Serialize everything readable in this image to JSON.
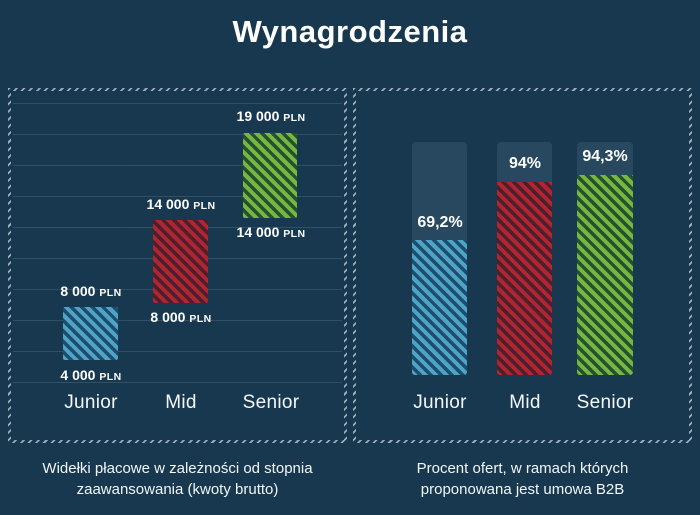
{
  "title": "Wynagrodzenia",
  "colors": {
    "background": "#17384E",
    "panel_border_hatch": "#B2C2CE",
    "track": "#27485E",
    "blue_stripe": "#4FA3C9",
    "red_stripe": "#B0252F",
    "green_stripe": "#74B742",
    "text": "#FFFFFF"
  },
  "salary_chart": {
    "caption_line1": "Widełki płacowe w zależności od stopnia",
    "caption_line2": "zaawansowania (kwoty brutto)",
    "unit": "PLN",
    "bars": [
      {
        "category": "Junior",
        "min_label": "4 000",
        "max_label": "8 000",
        "color": "blue"
      },
      {
        "category": "Mid",
        "min_label": "8 000",
        "max_label": "14 000",
        "color": "red"
      },
      {
        "category": "Senior",
        "min_label": "14 000",
        "max_label": "19 000",
        "color": "green"
      }
    ]
  },
  "b2b_chart": {
    "caption_line1": "Procent ofert, w ramach których",
    "caption_line2": "proponowana jest umowa B2B",
    "bars": [
      {
        "category": "Junior",
        "percent_label": "69,2%",
        "color": "blue"
      },
      {
        "category": "Mid",
        "percent_label": "94%",
        "color": "red"
      },
      {
        "category": "Senior",
        "percent_label": "94,3%",
        "color": "green"
      }
    ]
  },
  "chart_data": [
    {
      "type": "bar",
      "subtype": "floating-range-bars",
      "title": "Widełki płacowe w zależności od stopnia zaawansowania (kwoty brutto)",
      "categories": [
        "Junior",
        "Mid",
        "Senior"
      ],
      "series": [
        {
          "name": "min",
          "values": [
            4000,
            8000,
            14000
          ]
        },
        {
          "name": "max",
          "values": [
            8000,
            14000,
            19000
          ]
        }
      ],
      "unit": "PLN",
      "grid": true,
      "legend": false,
      "bar_colors": [
        "#4FA3C9",
        "#B0252F",
        "#74B742"
      ]
    },
    {
      "type": "bar",
      "title": "Procent ofert, w ramach których proponowana jest umowa B2B",
      "categories": [
        "Junior",
        "Mid",
        "Senior"
      ],
      "values": [
        69.2,
        94,
        94.3
      ],
      "unit": "%",
      "ylim": [
        0,
        100
      ],
      "grid": false,
      "legend": false,
      "bar_colors": [
        "#4FA3C9",
        "#B0252F",
        "#74B742"
      ]
    }
  ]
}
